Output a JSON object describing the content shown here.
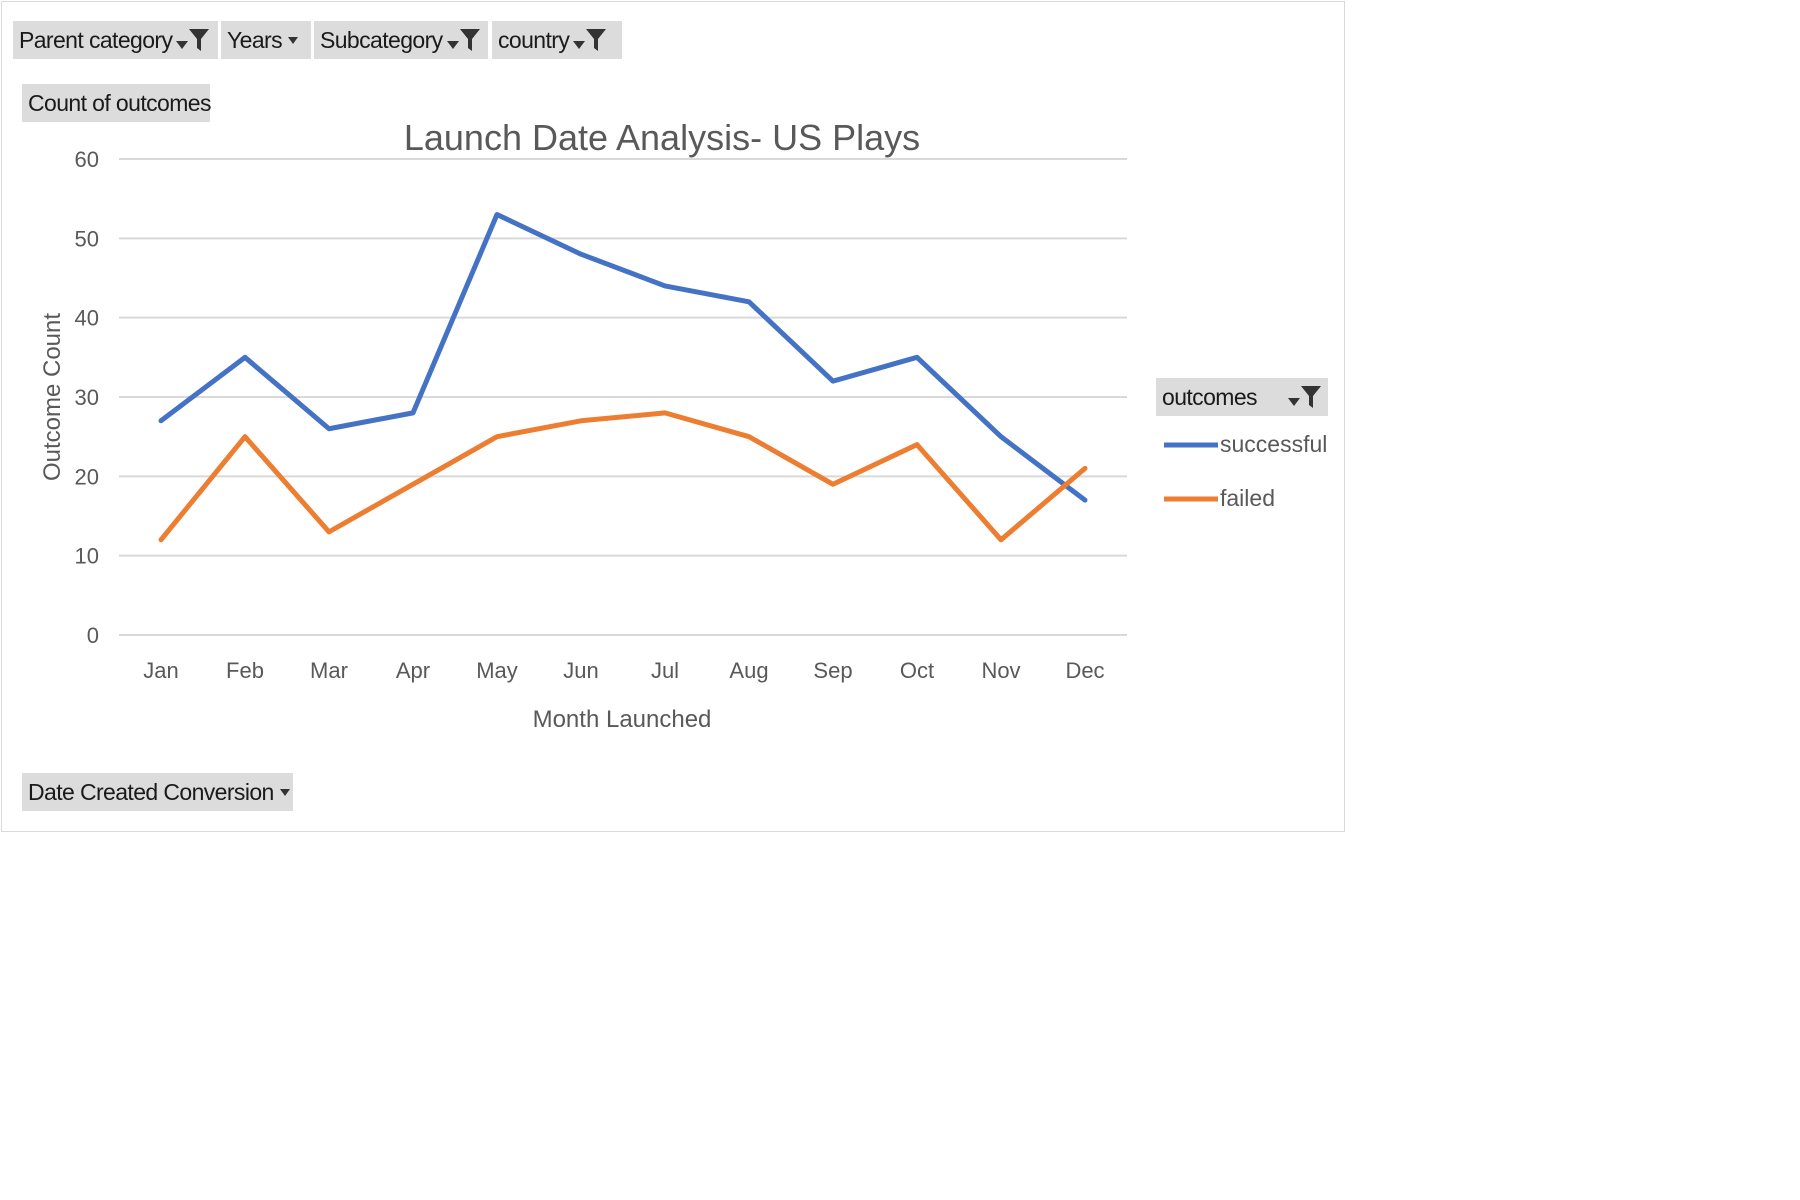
{
  "filters": {
    "parent_category": "Parent category",
    "years": "Years",
    "subcategory": "Subcategory",
    "country": "country",
    "values_field": "Count of outcomes",
    "axis_field": "Date Created Conversion",
    "legend_field": "outcomes"
  },
  "icons": {
    "filter": "filter-funnel-icon",
    "dropdown": "dropdown-arrow-icon"
  },
  "colors": {
    "successful": "#4472c4",
    "failed": "#ed7d31",
    "gridline": "#d9d9d9",
    "field_button": "#dcdcdc"
  },
  "chart_data": {
    "type": "line",
    "title": "Launch Date Analysis- US Plays",
    "xlabel": "Month Launched",
    "ylabel": "Outcome Count",
    "categories": [
      "Jan",
      "Feb",
      "Mar",
      "Apr",
      "May",
      "Jun",
      "Jul",
      "Aug",
      "Sep",
      "Oct",
      "Nov",
      "Dec"
    ],
    "yticks": [
      "0",
      "10",
      "20",
      "30",
      "40",
      "50",
      "60"
    ],
    "ylim": [
      0,
      60
    ],
    "grid": true,
    "legend_position": "right",
    "series": [
      {
        "name": "successful",
        "color": "#4472c4",
        "values": [
          27,
          35,
          26,
          28,
          53,
          48,
          44,
          42,
          32,
          35,
          25,
          17
        ]
      },
      {
        "name": "failed",
        "color": "#ed7d31",
        "values": [
          12,
          25,
          13,
          19,
          25,
          27,
          28,
          25,
          19,
          24,
          12,
          21
        ]
      }
    ]
  }
}
